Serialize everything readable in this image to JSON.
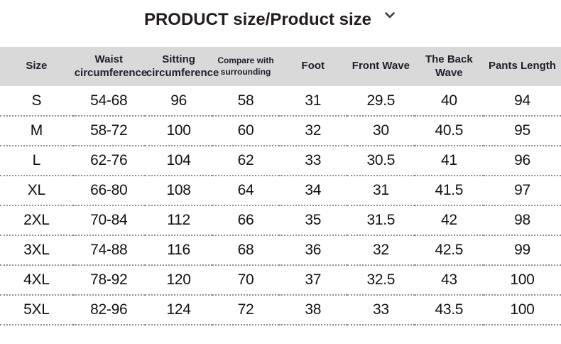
{
  "colors": {
    "header_band_bg": "#d9d9d9",
    "header_text": "#20202c",
    "body_text": "#121212",
    "title_text": "#231c1e",
    "divider_dotted": "#8f8f8f"
  },
  "section_header": {
    "title": "PRODUCT size/Product size",
    "collapse_icon": "chevron-down-icon"
  },
  "size_table": {
    "columns": [
      "Size",
      "Waist circumference",
      "Sitting circumference",
      "Compare with surrounding",
      "Foot",
      "Front Wave",
      "The Back Wave",
      "Pants Length"
    ],
    "column_widths_pct": [
      13.0,
      12.8,
      12.1,
      11.8,
      12.2,
      12.0,
      12.3,
      13.8
    ],
    "small_font_column_index": 3,
    "rows": [
      [
        "S",
        "54-68",
        "96",
        "58",
        "31",
        "29.5",
        "40",
        "94"
      ],
      [
        "M",
        "58-72",
        "100",
        "60",
        "32",
        "30",
        "40.5",
        "95"
      ],
      [
        "L",
        "62-76",
        "104",
        "62",
        "33",
        "30.5",
        "41",
        "96"
      ],
      [
        "XL",
        "66-80",
        "108",
        "64",
        "34",
        "31",
        "41.5",
        "97"
      ],
      [
        "2XL",
        "70-84",
        "112",
        "66",
        "35",
        "31.5",
        "42",
        "98"
      ],
      [
        "3XL",
        "74-88",
        "116",
        "68",
        "36",
        "32",
        "42.5",
        "99"
      ],
      [
        "4XL",
        "78-92",
        "120",
        "70",
        "37",
        "32.5",
        "43",
        "100"
      ],
      [
        "5XL",
        "82-96",
        "124",
        "72",
        "38",
        "33",
        "43.5",
        "100"
      ]
    ]
  }
}
